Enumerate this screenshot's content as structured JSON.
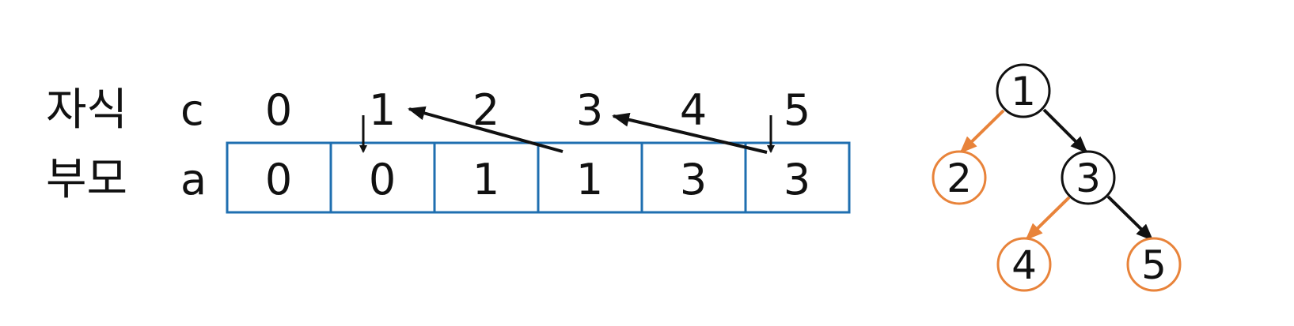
{
  "labels": {
    "child_korean": "자식",
    "child_var": "c",
    "parent_korean": "부모",
    "parent_var": "a"
  },
  "indices": [
    "0",
    "1",
    "2",
    "3",
    "4",
    "5"
  ],
  "array_values": [
    "0",
    "0",
    "1",
    "1",
    "3",
    "3"
  ],
  "tree": {
    "nodes": [
      "1",
      "2",
      "3",
      "4",
      "5"
    ],
    "edges": [
      {
        "from": "1",
        "to": "2",
        "highlight": true
      },
      {
        "from": "1",
        "to": "3",
        "highlight": false
      },
      {
        "from": "3",
        "to": "4",
        "highlight": true
      },
      {
        "from": "3",
        "to": "5",
        "highlight": false
      }
    ]
  },
  "colors": {
    "cell_border": "#1f6fb0",
    "highlight": "#e8833a",
    "default": "#111111"
  }
}
